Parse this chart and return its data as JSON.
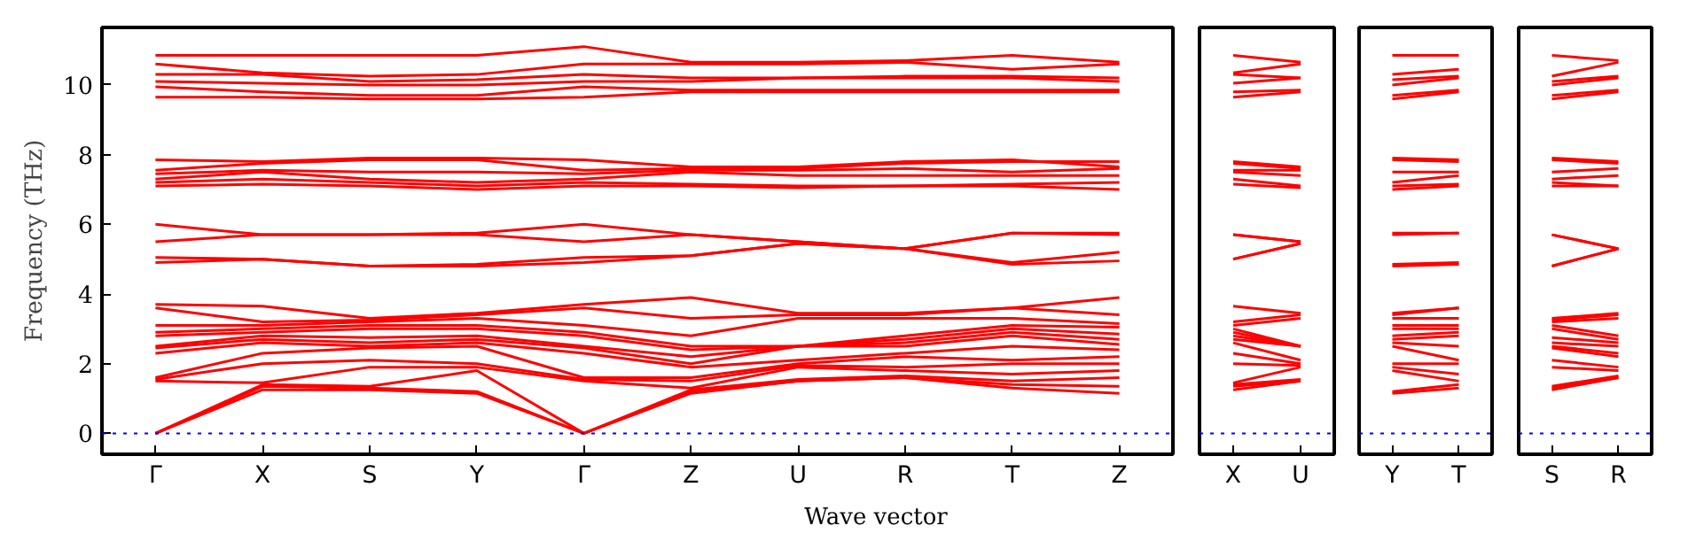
{
  "chart_data": [
    {
      "type": "line",
      "ylabel": "Frequency (THz)",
      "xlabel": "Wave vector",
      "grid": false,
      "marker": "none",
      "line_style": "solid",
      "categories": [
        "Γ",
        "X",
        "S",
        "Y",
        "Γ",
        "Z",
        "U",
        "R",
        "T",
        "Z"
      ],
      "ylim": [
        -0.6,
        11.65
      ],
      "yticks": [
        0,
        2,
        4,
        6,
        8,
        10
      ],
      "ref_lines": [
        {
          "axis": "y",
          "value": 0,
          "color": "#0000ff",
          "line_style": "dotted"
        }
      ],
      "series": [
        {
          "color": "#ff0000",
          "values": [
            0,
            1.25,
            1.25,
            1.15,
            0,
            1.15,
            1.5,
            1.6,
            1.3,
            1.15
          ]
        },
        {
          "color": "#ff0000",
          "values": [
            0,
            1.35,
            1.3,
            1.2,
            0,
            1.2,
            1.5,
            1.6,
            1.4,
            1.35
          ]
        },
        {
          "color": "#ff0000",
          "values": [
            0,
            1.4,
            1.35,
            1.8,
            0,
            1.25,
            1.55,
            1.65,
            1.5,
            1.6
          ]
        },
        {
          "color": "#ff0000",
          "values": [
            1.5,
            1.45,
            1.9,
            1.9,
            1.5,
            1.3,
            1.9,
            1.8,
            1.7,
            1.8
          ]
        },
        {
          "color": "#ff0000",
          "values": [
            1.55,
            2.0,
            2.1,
            2.0,
            1.55,
            1.5,
            1.95,
            1.9,
            2.0,
            2.0
          ]
        },
        {
          "color": "#ff0000",
          "values": [
            1.6,
            2.3,
            2.45,
            2.5,
            1.6,
            1.6,
            2.0,
            2.2,
            2.1,
            2.2
          ]
        },
        {
          "color": "#ff0000",
          "values": [
            2.3,
            2.6,
            2.5,
            2.6,
            2.3,
            1.9,
            2.1,
            2.3,
            2.5,
            2.4
          ]
        },
        {
          "color": "#ff0000",
          "values": [
            2.45,
            2.7,
            2.6,
            2.7,
            2.45,
            2.0,
            2.5,
            2.5,
            2.8,
            2.55
          ]
        },
        {
          "color": "#ff0000",
          "values": [
            2.5,
            2.8,
            2.75,
            2.8,
            2.5,
            2.2,
            2.5,
            2.6,
            2.9,
            2.7
          ]
        },
        {
          "color": "#ff0000",
          "values": [
            2.8,
            2.9,
            3.0,
            3.0,
            2.8,
            2.4,
            2.5,
            2.7,
            3.0,
            2.85
          ]
        },
        {
          "color": "#ff0000",
          "values": [
            2.9,
            3.0,
            3.1,
            3.1,
            2.9,
            2.5,
            2.5,
            2.8,
            3.1,
            3.05
          ]
        },
        {
          "color": "#ff0000",
          "values": [
            3.1,
            3.1,
            3.2,
            3.3,
            3.1,
            2.8,
            3.3,
            3.3,
            3.3,
            3.15
          ]
        },
        {
          "color": "#ff0000",
          "values": [
            3.6,
            3.2,
            3.25,
            3.4,
            3.6,
            3.3,
            3.4,
            3.4,
            3.6,
            3.4
          ]
        },
        {
          "color": "#ff0000",
          "values": [
            3.7,
            3.65,
            3.3,
            3.45,
            3.7,
            3.9,
            3.45,
            3.45,
            3.6,
            3.9
          ]
        },
        {
          "color": "#ff0000",
          "values": [
            4.9,
            5.0,
            4.8,
            4.8,
            4.9,
            5.1,
            5.45,
            5.3,
            4.85,
            4.95
          ]
        },
        {
          "color": "#ff0000",
          "values": [
            5.05,
            5.0,
            4.8,
            4.85,
            5.05,
            5.1,
            5.45,
            5.3,
            4.9,
            5.2
          ]
        },
        {
          "color": "#ff0000",
          "values": [
            5.5,
            5.7,
            5.7,
            5.7,
            5.5,
            5.7,
            5.5,
            5.3,
            5.75,
            5.7
          ]
        },
        {
          "color": "#ff0000",
          "values": [
            6.0,
            5.7,
            5.7,
            5.75,
            6.0,
            5.7,
            5.5,
            5.3,
            5.75,
            5.75
          ]
        },
        {
          "color": "#ff0000",
          "values": [
            7.1,
            7.15,
            7.1,
            7.0,
            7.1,
            7.1,
            7.05,
            7.1,
            7.1,
            7.0
          ]
        },
        {
          "color": "#ff0000",
          "values": [
            7.2,
            7.3,
            7.2,
            7.1,
            7.2,
            7.15,
            7.1,
            7.1,
            7.15,
            7.2
          ]
        },
        {
          "color": "#ff0000",
          "values": [
            7.3,
            7.5,
            7.3,
            7.2,
            7.3,
            7.5,
            7.4,
            7.4,
            7.4,
            7.4
          ]
        },
        {
          "color": "#ff0000",
          "values": [
            7.45,
            7.55,
            7.5,
            7.5,
            7.45,
            7.55,
            7.55,
            7.6,
            7.5,
            7.6
          ]
        },
        {
          "color": "#ff0000",
          "values": [
            7.55,
            7.75,
            7.85,
            7.85,
            7.55,
            7.6,
            7.6,
            7.75,
            7.8,
            7.8
          ]
        },
        {
          "color": "#ff0000",
          "values": [
            7.85,
            7.8,
            7.9,
            7.9,
            7.85,
            7.65,
            7.65,
            7.8,
            7.85,
            7.65
          ]
        },
        {
          "color": "#ff0000",
          "values": [
            9.65,
            9.65,
            9.6,
            9.6,
            9.65,
            9.8,
            9.8,
            9.8,
            9.8,
            9.8
          ]
        },
        {
          "color": "#ff0000",
          "values": [
            9.95,
            9.8,
            9.7,
            9.7,
            9.95,
            9.85,
            9.85,
            9.85,
            9.85,
            9.85
          ]
        },
        {
          "color": "#ff0000",
          "values": [
            10.1,
            10.05,
            10.0,
            10.0,
            10.1,
            10.1,
            10.2,
            10.2,
            10.2,
            10.1
          ]
        },
        {
          "color": "#ff0000",
          "values": [
            10.3,
            10.3,
            10.1,
            10.15,
            10.3,
            10.2,
            10.2,
            10.25,
            10.25,
            10.2
          ]
        },
        {
          "color": "#ff0000",
          "values": [
            10.6,
            10.35,
            10.25,
            10.3,
            10.6,
            10.6,
            10.6,
            10.65,
            10.45,
            10.6
          ]
        },
        {
          "color": "#ff0000",
          "values": [
            10.85,
            10.85,
            10.85,
            10.85,
            11.1,
            10.65,
            10.65,
            10.7,
            10.85,
            10.65
          ]
        }
      ]
    },
    {
      "type": "line",
      "grid": false,
      "marker": "none",
      "line_style": "solid",
      "tick_labels": "x",
      "categories": [
        "X",
        "U"
      ],
      "ylim": [
        -0.6,
        11.65
      ],
      "yticks": [
        0,
        2,
        4,
        6,
        8,
        10
      ],
      "ref_lines": [
        {
          "axis": "y",
          "value": 0,
          "color": "#0000ff",
          "line_style": "dotted"
        }
      ],
      "series": [
        {
          "color": "#ff0000",
          "values": [
            1.25,
            1.5
          ]
        },
        {
          "color": "#ff0000",
          "values": [
            1.35,
            1.5
          ]
        },
        {
          "color": "#ff0000",
          "values": [
            1.4,
            1.55
          ]
        },
        {
          "color": "#ff0000",
          "values": [
            1.45,
            1.9
          ]
        },
        {
          "color": "#ff0000",
          "values": [
            2.0,
            1.95
          ]
        },
        {
          "color": "#ff0000",
          "values": [
            2.3,
            2.0
          ]
        },
        {
          "color": "#ff0000",
          "values": [
            2.6,
            2.1
          ]
        },
        {
          "color": "#ff0000",
          "values": [
            2.7,
            2.5
          ]
        },
        {
          "color": "#ff0000",
          "values": [
            2.8,
            2.5
          ]
        },
        {
          "color": "#ff0000",
          "values": [
            2.9,
            2.5
          ]
        },
        {
          "color": "#ff0000",
          "values": [
            3.0,
            2.5
          ]
        },
        {
          "color": "#ff0000",
          "values": [
            3.1,
            3.3
          ]
        },
        {
          "color": "#ff0000",
          "values": [
            3.2,
            3.4
          ]
        },
        {
          "color": "#ff0000",
          "values": [
            3.65,
            3.45
          ]
        },
        {
          "color": "#ff0000",
          "values": [
            5.0,
            5.45
          ]
        },
        {
          "color": "#ff0000",
          "values": [
            5.0,
            5.45
          ]
        },
        {
          "color": "#ff0000",
          "values": [
            5.7,
            5.5
          ]
        },
        {
          "color": "#ff0000",
          "values": [
            5.7,
            5.5
          ]
        },
        {
          "color": "#ff0000",
          "values": [
            7.15,
            7.05
          ]
        },
        {
          "color": "#ff0000",
          "values": [
            7.3,
            7.1
          ]
        },
        {
          "color": "#ff0000",
          "values": [
            7.5,
            7.4
          ]
        },
        {
          "color": "#ff0000",
          "values": [
            7.55,
            7.55
          ]
        },
        {
          "color": "#ff0000",
          "values": [
            7.75,
            7.6
          ]
        },
        {
          "color": "#ff0000",
          "values": [
            7.8,
            7.65
          ]
        },
        {
          "color": "#ff0000",
          "values": [
            9.65,
            9.8
          ]
        },
        {
          "color": "#ff0000",
          "values": [
            9.8,
            9.85
          ]
        },
        {
          "color": "#ff0000",
          "values": [
            10.05,
            10.2
          ]
        },
        {
          "color": "#ff0000",
          "values": [
            10.3,
            10.2
          ]
        },
        {
          "color": "#ff0000",
          "values": [
            10.35,
            10.6
          ]
        },
        {
          "color": "#ff0000",
          "values": [
            10.85,
            10.65
          ]
        }
      ]
    },
    {
      "type": "line",
      "grid": false,
      "marker": "none",
      "line_style": "solid",
      "tick_labels": "x",
      "categories": [
        "Y",
        "T"
      ],
      "ylim": [
        -0.6,
        11.65
      ],
      "yticks": [
        0,
        2,
        4,
        6,
        8,
        10
      ],
      "ref_lines": [
        {
          "axis": "y",
          "value": 0,
          "color": "#0000ff",
          "line_style": "dotted"
        }
      ],
      "series": [
        {
          "color": "#ff0000",
          "values": [
            1.15,
            1.3
          ]
        },
        {
          "color": "#ff0000",
          "values": [
            1.2,
            1.4
          ]
        },
        {
          "color": "#ff0000",
          "values": [
            1.8,
            1.5
          ]
        },
        {
          "color": "#ff0000",
          "values": [
            1.9,
            1.7
          ]
        },
        {
          "color": "#ff0000",
          "values": [
            2.0,
            2.0
          ]
        },
        {
          "color": "#ff0000",
          "values": [
            2.5,
            2.1
          ]
        },
        {
          "color": "#ff0000",
          "values": [
            2.6,
            2.5
          ]
        },
        {
          "color": "#ff0000",
          "values": [
            2.7,
            2.8
          ]
        },
        {
          "color": "#ff0000",
          "values": [
            2.8,
            2.9
          ]
        },
        {
          "color": "#ff0000",
          "values": [
            3.0,
            3.0
          ]
        },
        {
          "color": "#ff0000",
          "values": [
            3.1,
            3.1
          ]
        },
        {
          "color": "#ff0000",
          "values": [
            3.3,
            3.3
          ]
        },
        {
          "color": "#ff0000",
          "values": [
            3.4,
            3.6
          ]
        },
        {
          "color": "#ff0000",
          "values": [
            3.45,
            3.6
          ]
        },
        {
          "color": "#ff0000",
          "values": [
            4.8,
            4.85
          ]
        },
        {
          "color": "#ff0000",
          "values": [
            4.85,
            4.9
          ]
        },
        {
          "color": "#ff0000",
          "values": [
            5.7,
            5.75
          ]
        },
        {
          "color": "#ff0000",
          "values": [
            5.75,
            5.75
          ]
        },
        {
          "color": "#ff0000",
          "values": [
            7.0,
            7.1
          ]
        },
        {
          "color": "#ff0000",
          "values": [
            7.1,
            7.15
          ]
        },
        {
          "color": "#ff0000",
          "values": [
            7.2,
            7.4
          ]
        },
        {
          "color": "#ff0000",
          "values": [
            7.5,
            7.5
          ]
        },
        {
          "color": "#ff0000",
          "values": [
            7.85,
            7.8
          ]
        },
        {
          "color": "#ff0000",
          "values": [
            7.9,
            7.85
          ]
        },
        {
          "color": "#ff0000",
          "values": [
            9.6,
            9.8
          ]
        },
        {
          "color": "#ff0000",
          "values": [
            9.7,
            9.85
          ]
        },
        {
          "color": "#ff0000",
          "values": [
            10.0,
            10.2
          ]
        },
        {
          "color": "#ff0000",
          "values": [
            10.15,
            10.25
          ]
        },
        {
          "color": "#ff0000",
          "values": [
            10.3,
            10.45
          ]
        },
        {
          "color": "#ff0000",
          "values": [
            10.85,
            10.85
          ]
        }
      ]
    },
    {
      "type": "line",
      "grid": false,
      "marker": "none",
      "line_style": "solid",
      "tick_labels": "x",
      "categories": [
        "S",
        "R"
      ],
      "ylim": [
        -0.6,
        11.65
      ],
      "yticks": [
        0,
        2,
        4,
        6,
        8,
        10
      ],
      "ref_lines": [
        {
          "axis": "y",
          "value": 0,
          "color": "#0000ff",
          "line_style": "dotted"
        }
      ],
      "series": [
        {
          "color": "#ff0000",
          "values": [
            1.25,
            1.6
          ]
        },
        {
          "color": "#ff0000",
          "values": [
            1.3,
            1.6
          ]
        },
        {
          "color": "#ff0000",
          "values": [
            1.35,
            1.65
          ]
        },
        {
          "color": "#ff0000",
          "values": [
            1.9,
            1.8
          ]
        },
        {
          "color": "#ff0000",
          "values": [
            2.1,
            1.9
          ]
        },
        {
          "color": "#ff0000",
          "values": [
            2.45,
            2.2
          ]
        },
        {
          "color": "#ff0000",
          "values": [
            2.5,
            2.3
          ]
        },
        {
          "color": "#ff0000",
          "values": [
            2.6,
            2.5
          ]
        },
        {
          "color": "#ff0000",
          "values": [
            2.75,
            2.6
          ]
        },
        {
          "color": "#ff0000",
          "values": [
            3.0,
            2.7
          ]
        },
        {
          "color": "#ff0000",
          "values": [
            3.1,
            2.8
          ]
        },
        {
          "color": "#ff0000",
          "values": [
            3.2,
            3.3
          ]
        },
        {
          "color": "#ff0000",
          "values": [
            3.25,
            3.4
          ]
        },
        {
          "color": "#ff0000",
          "values": [
            3.3,
            3.45
          ]
        },
        {
          "color": "#ff0000",
          "values": [
            4.8,
            5.3
          ]
        },
        {
          "color": "#ff0000",
          "values": [
            4.8,
            5.3
          ]
        },
        {
          "color": "#ff0000",
          "values": [
            5.7,
            5.3
          ]
        },
        {
          "color": "#ff0000",
          "values": [
            5.7,
            5.3
          ]
        },
        {
          "color": "#ff0000",
          "values": [
            7.1,
            7.1
          ]
        },
        {
          "color": "#ff0000",
          "values": [
            7.2,
            7.1
          ]
        },
        {
          "color": "#ff0000",
          "values": [
            7.3,
            7.4
          ]
        },
        {
          "color": "#ff0000",
          "values": [
            7.5,
            7.6
          ]
        },
        {
          "color": "#ff0000",
          "values": [
            7.85,
            7.75
          ]
        },
        {
          "color": "#ff0000",
          "values": [
            7.9,
            7.8
          ]
        },
        {
          "color": "#ff0000",
          "values": [
            9.6,
            9.8
          ]
        },
        {
          "color": "#ff0000",
          "values": [
            9.7,
            9.85
          ]
        },
        {
          "color": "#ff0000",
          "values": [
            10.0,
            10.2
          ]
        },
        {
          "color": "#ff0000",
          "values": [
            10.1,
            10.25
          ]
        },
        {
          "color": "#ff0000",
          "values": [
            10.25,
            10.65
          ]
        },
        {
          "color": "#ff0000",
          "values": [
            10.85,
            10.7
          ]
        }
      ]
    }
  ]
}
